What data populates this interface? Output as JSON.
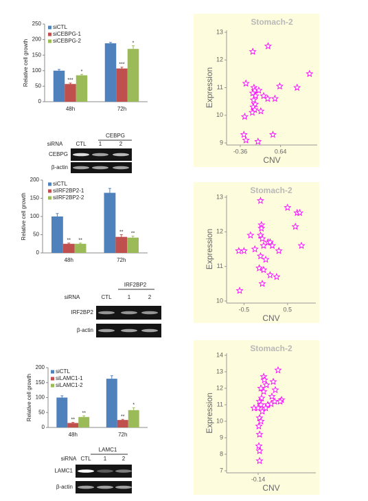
{
  "chart_data": [
    {
      "type": "bar",
      "y_label": "Relative cell growth",
      "categories": [
        "48h",
        "72h"
      ],
      "ylim": [
        0,
        250
      ],
      "yticks": [
        0,
        50,
        100,
        150,
        200,
        250
      ],
      "series": [
        {
          "name": "siCTL",
          "color": "#4f81bd",
          "values": [
            100,
            188
          ],
          "errors": [
            4,
            3
          ]
        },
        {
          "name": "siCEBPG-1",
          "color": "#c0504d",
          "values": [
            57,
            107
          ],
          "errors": [
            3,
            4
          ],
          "significance": [
            "***",
            "***"
          ]
        },
        {
          "name": "siCEBPG-2",
          "color": "#9bbb59",
          "values": [
            85,
            170
          ],
          "errors": [
            3,
            10
          ],
          "significance": [
            "*",
            "*"
          ]
        }
      ]
    },
    {
      "type": "scatter",
      "title": "Stomach-2",
      "x_label": "CNV",
      "y_label": "Expression",
      "xlim": [
        -0.7,
        1.55
      ],
      "ylim": [
        9,
        13
      ],
      "xticks": [
        -0.36,
        0.64
      ],
      "yticks": [
        9,
        10,
        11,
        12,
        13
      ],
      "color": "#ff00ff",
      "x": [
        -0.05,
        0.33,
        1.36,
        -0.22,
        -0.02,
        0.0,
        -0.05,
        0.02,
        -0.03,
        0.01,
        -0.04,
        0.0,
        -0.06,
        0.15,
        -0.25,
        0.22,
        0.32,
        0.5,
        0.62,
        1.05,
        -0.27,
        -0.22,
        0.08,
        0.45,
        0.1
      ],
      "values": [
        12.3,
        12.5,
        11.5,
        11.15,
        11.0,
        10.9,
        10.8,
        10.7,
        10.55,
        10.4,
        10.3,
        10.2,
        10.1,
        10.15,
        9.95,
        10.7,
        10.6,
        10.6,
        11.05,
        11.0,
        9.3,
        9.1,
        9.05,
        9.3,
        10.9
      ]
    },
    {
      "type": "bar",
      "y_label": "Relative cell growth",
      "categories": [
        "48h",
        "72h"
      ],
      "ylim": [
        0,
        200
      ],
      "yticks": [
        0,
        50,
        100,
        150,
        200
      ],
      "series": [
        {
          "name": "siCTL",
          "color": "#4f81bd",
          "values": [
            100,
            165
          ],
          "errors": [
            8,
            12
          ]
        },
        {
          "name": "siIRF2BP2-1",
          "color": "#c0504d",
          "values": [
            25,
            44
          ],
          "errors": [
            2,
            6
          ],
          "significance": [
            "**",
            "**"
          ]
        },
        {
          "name": "siIRF2BP2-2",
          "color": "#9bbb59",
          "values": [
            25,
            42
          ],
          "errors": [
            2,
            4
          ],
          "significance": [
            "**",
            "**"
          ]
        }
      ]
    },
    {
      "type": "scatter",
      "title": "Stomach-2",
      "x_label": "CNV",
      "y_label": "Expression",
      "xlim": [
        -0.9,
        1.15
      ],
      "ylim": [
        10,
        13
      ],
      "xticks": [
        -0.5,
        0.5
      ],
      "yticks": [
        10,
        11,
        12,
        13
      ],
      "color": "#ff00ff",
      "x": [
        -0.12,
        0.5,
        0.72,
        0.78,
        0.68,
        0.82,
        -0.1,
        -0.1,
        -0.12,
        -0.08,
        -0.35,
        0.05,
        0.1,
        -0.05,
        0.15,
        0.3,
        -0.25,
        -0.62,
        -0.5,
        -0.12,
        0.0,
        -0.15,
        -0.05,
        0.1,
        0.25,
        -0.08,
        -0.6
      ],
      "values": [
        12.9,
        12.7,
        12.55,
        12.55,
        12.15,
        11.6,
        12.2,
        12.1,
        11.9,
        11.8,
        11.9,
        11.7,
        11.7,
        11.6,
        11.6,
        11.45,
        11.5,
        11.45,
        11.45,
        11.3,
        11.2,
        10.95,
        10.9,
        10.75,
        10.7,
        10.5,
        10.3
      ]
    },
    {
      "type": "bar",
      "y_label": "Relative cell growth",
      "categories": [
        "48h",
        "72h"
      ],
      "ylim": [
        0,
        200
      ],
      "yticks": [
        0,
        50,
        100,
        150,
        200
      ],
      "series": [
        {
          "name": "siCTL",
          "color": "#4f81bd",
          "values": [
            100,
            163
          ],
          "errors": [
            6,
            10
          ]
        },
        {
          "name": "siLAMC1-1",
          "color": "#c0504d",
          "values": [
            15,
            25
          ],
          "errors": [
            2,
            2
          ],
          "significance": [
            "**",
            "**"
          ]
        },
        {
          "name": "siLAMC1-2",
          "color": "#9bbb59",
          "values": [
            35,
            58
          ],
          "errors": [
            4,
            8
          ],
          "significance": [
            "**",
            "*"
          ]
        }
      ]
    },
    {
      "type": "scatter",
      "title": "Stomach-2",
      "x_label": "CNV",
      "y_label": "Expression",
      "xlim": [
        -0.6,
        0.7
      ],
      "ylim": [
        7,
        14
      ],
      "xticks": [
        -0.14
      ],
      "yticks": [
        7,
        8,
        9,
        10,
        11,
        12,
        13,
        14
      ],
      "color": "#ff00ff",
      "x": [
        -0.06,
        0.15,
        0.2,
        -0.05,
        -0.02,
        0.08,
        -0.1,
        -0.06,
        0.11,
        0.06,
        -0.12,
        0.0,
        0.05,
        -0.1,
        0.1,
        0.18,
        -0.2,
        -0.14,
        -0.08,
        -0.12,
        -0.1,
        -0.13,
        -0.12,
        -0.13,
        -0.12,
        -0.12,
        -0.03,
        -0.09
      ],
      "values": [
        12.7,
        13.1,
        11.3,
        12.5,
        12.2,
        12.4,
        12.0,
        11.8,
        11.9,
        11.5,
        11.2,
        11.0,
        11.05,
        11.0,
        11.2,
        11.2,
        10.8,
        10.8,
        10.6,
        10.2,
        10.0,
        9.7,
        9.2,
        8.5,
        8.2,
        7.6,
        10.8,
        11.4
      ]
    }
  ],
  "blots": [
    {
      "target": "CEBPG",
      "sirna": "siRNA",
      "lanes": [
        "CTL",
        "1",
        "2"
      ],
      "rows": [
        "CEBPG",
        "β-actin"
      ]
    },
    {
      "target": "IRF2BP2",
      "sirna": "siRNA",
      "lanes": [
        "CTL",
        "1",
        "2"
      ],
      "rows": [
        "IRF2BP2",
        "β-actin"
      ]
    },
    {
      "target": "LAMC1",
      "sirna": "siRNA",
      "lanes": [
        "CTL",
        "1",
        "2"
      ],
      "rows": [
        "LAMC1",
        "β-actin"
      ]
    }
  ]
}
